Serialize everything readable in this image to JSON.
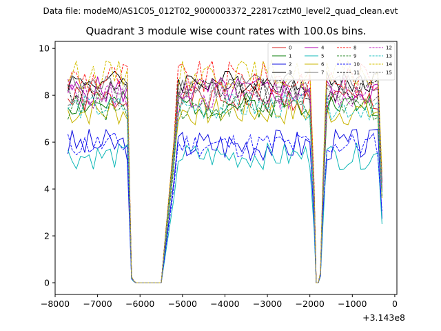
{
  "suptitle": "Data file: modeM0/AS1C05_012T02_9000003372_22817cztM0_level2_quad_clean.evt",
  "chart_data": {
    "type": "line",
    "title": "Quadrant 3 module wise count rates with 100.0s bins.",
    "xlabel": "",
    "ylabel": "",
    "x_offset_label": "+3.143e8",
    "xlim": [
      -8000,
      50
    ],
    "ylim": [
      -0.5,
      10.3
    ],
    "xticks": [
      -8000,
      -7000,
      -6000,
      -5000,
      -4000,
      -3000,
      -2000,
      -1000,
      0
    ],
    "xtick_labels": [
      "−8000",
      "−7000",
      "−6000",
      "−5000",
      "−4000",
      "−3000",
      "−2000",
      "−1000",
      "0"
    ],
    "yticks": [
      0,
      2,
      4,
      6,
      8,
      10
    ],
    "ytick_labels": [
      "0",
      "2",
      "4",
      "6",
      "8",
      "10"
    ],
    "grid": false,
    "legend_position": "top-right",
    "legend_columns": 4,
    "profile_x": [
      -7700,
      -7600,
      -7500,
      -7400,
      -7300,
      -7200,
      -7100,
      -7000,
      -6900,
      -6800,
      -6700,
      -6600,
      -6500,
      -6400,
      -6300,
      -6200,
      -6150,
      -6100,
      -5500,
      -5200,
      -5100,
      -5000,
      -4900,
      -4800,
      -4700,
      -4600,
      -4500,
      -4400,
      -4300,
      -4200,
      -4100,
      -4000,
      -3900,
      -3800,
      -3700,
      -3600,
      -3500,
      -3400,
      -3300,
      -3200,
      -3100,
      -3000,
      -2900,
      -2800,
      -2700,
      -2600,
      -2500,
      -2400,
      -2300,
      -2200,
      -2100,
      -2000,
      -1900,
      -1850,
      -1800,
      -1750,
      -1700,
      -1600,
      -1500,
      -1400,
      -1300,
      -1200,
      -1100,
      -1000,
      -900,
      -800,
      -700,
      -600,
      -500,
      -400,
      -300
    ],
    "profile_shape": [
      1,
      1,
      1,
      1,
      1,
      1,
      1,
      1,
      1,
      1,
      1,
      1,
      1,
      1,
      1,
      0.03,
      0.01,
      0,
      0,
      0.7,
      1,
      1,
      1,
      1,
      1,
      1,
      1,
      1,
      1,
      1,
      1,
      1,
      1,
      1,
      1,
      1,
      1,
      1,
      1,
      1,
      1,
      1,
      1,
      1,
      1,
      1,
      1,
      1,
      1,
      1,
      1,
      1,
      0.45,
      0,
      0,
      0.05,
      0.45,
      1,
      1,
      1,
      1,
      1,
      1,
      1,
      1,
      1,
      1,
      1,
      1,
      1,
      0.5
    ],
    "series": [
      {
        "name": "0",
        "color": "#d62020",
        "dash": "solid",
        "level": 7.8,
        "amp": 0.28,
        "seed": 1
      },
      {
        "name": "1",
        "color": "#0a7d0a",
        "dash": "solid",
        "level": 7.6,
        "amp": 0.25,
        "seed": 2
      },
      {
        "name": "2",
        "color": "#1010e0",
        "dash": "solid",
        "level": 5.9,
        "amp": 0.32,
        "seed": 3
      },
      {
        "name": "3",
        "color": "#000000",
        "dash": "solid",
        "level": 8.6,
        "amp": 0.22,
        "seed": 4
      },
      {
        "name": "4",
        "color": "#b000b0",
        "dash": "solid",
        "level": 8.2,
        "amp": 0.28,
        "seed": 5
      },
      {
        "name": "5",
        "color": "#10b8b8",
        "dash": "solid",
        "level": 5.4,
        "amp": 0.26,
        "seed": 6
      },
      {
        "name": "6",
        "color": "#c8b400",
        "dash": "solid",
        "level": 7.3,
        "amp": 0.28,
        "seed": 7
      },
      {
        "name": "7",
        "color": "#7a7a7a",
        "dash": "solid",
        "level": 8.4,
        "amp": 0.25,
        "seed": 8
      },
      {
        "name": "8",
        "color": "#ff1a1a",
        "dash": "dashed",
        "level": 8.7,
        "amp": 0.35,
        "seed": 9
      },
      {
        "name": "9",
        "color": "#2e8b2e",
        "dash": "dashed",
        "level": 7.5,
        "amp": 0.28,
        "seed": 10
      },
      {
        "name": "10",
        "color": "#1a1aff",
        "dash": "dashed",
        "level": 5.9,
        "amp": 0.25,
        "seed": 11
      },
      {
        "name": "11",
        "color": "#111111",
        "dash": "dashed",
        "level": 8.2,
        "amp": 0.25,
        "seed": 12
      },
      {
        "name": "12",
        "color": "#c020c0",
        "dash": "dashed",
        "level": 8.0,
        "amp": 0.28,
        "seed": 13
      },
      {
        "name": "13",
        "color": "#20c0c0",
        "dash": "dashed",
        "level": 7.5,
        "amp": 0.25,
        "seed": 14
      },
      {
        "name": "14",
        "color": "#d4c000",
        "dash": "dashed",
        "level": 8.9,
        "amp": 0.28,
        "seed": 15
      },
      {
        "name": "15",
        "color": "#808080",
        "dash": "dashed",
        "level": 8.0,
        "amp": 0.25,
        "seed": 16
      }
    ]
  }
}
